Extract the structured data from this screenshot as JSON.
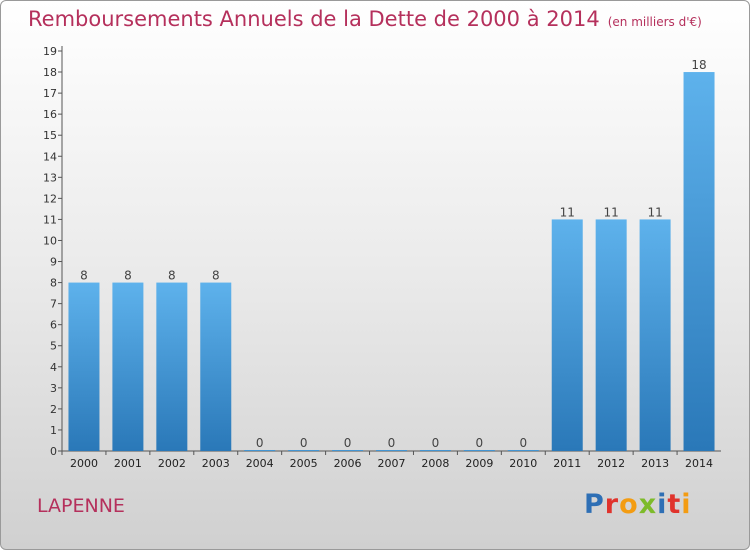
{
  "place": "LAPENNE",
  "logo": {
    "text": "Proxiti",
    "letter_colors": [
      "#2e6fb5",
      "#e0332c",
      "#f39c12",
      "#7dbb2a",
      "#2e6fb5",
      "#e0332c",
      "#f39c12"
    ]
  },
  "chart_data": {
    "type": "bar",
    "title": "Remboursements Annuels de la Dette de 2000 à 2014",
    "subtitle": "(en milliers d'€)",
    "xlabel": "",
    "ylabel": "",
    "categories": [
      "2000",
      "2001",
      "2002",
      "2003",
      "2004",
      "2005",
      "2006",
      "2007",
      "2008",
      "2009",
      "2010",
      "2011",
      "2012",
      "2013",
      "2014"
    ],
    "values": [
      8,
      8,
      8,
      8,
      0,
      0,
      0,
      0,
      0,
      0,
      0,
      11,
      11,
      11,
      18
    ],
    "ylim": [
      0,
      19
    ],
    "yticks": [
      0,
      1,
      2,
      3,
      4,
      5,
      6,
      7,
      8,
      9,
      10,
      11,
      12,
      13,
      14,
      15,
      16,
      17,
      18,
      19
    ],
    "grid": false,
    "bar_color_light": "#5eb2ec",
    "bar_color_dark": "#2a78b8"
  }
}
